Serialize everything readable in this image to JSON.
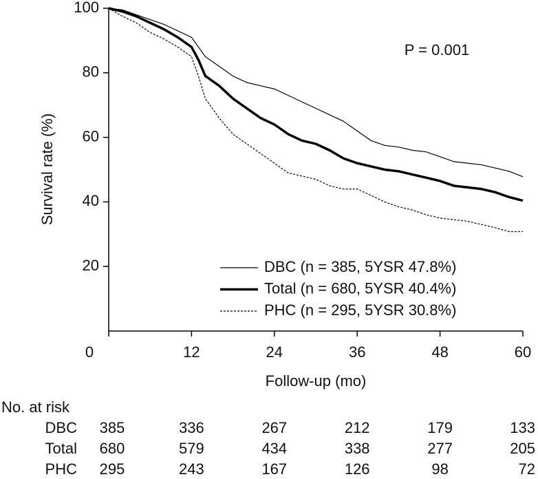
{
  "chart_data": {
    "type": "line",
    "x_label": "Follow-up (mo)",
    "y_label": "Survival rate (%)",
    "annotation": "P = 0.001",
    "xlim": [
      0,
      60
    ],
    "xticks": [
      0,
      12,
      24,
      36,
      48,
      60
    ],
    "ylim": [
      0,
      100
    ],
    "yticks": [
      20,
      40,
      60,
      80,
      100
    ],
    "legend": "lower right",
    "x": [
      0,
      2,
      4,
      6,
      8,
      10,
      12,
      13,
      14,
      16,
      18,
      20,
      22,
      24,
      26,
      28,
      30,
      32,
      34,
      36,
      38,
      40,
      42,
      44,
      46,
      48,
      50,
      52,
      54,
      56,
      58,
      60
    ],
    "series": [
      {
        "name": "DBC (n = 385, 5YSR 47.8%)",
        "color": "#000000",
        "line_width": 1.2,
        "dashed": false,
        "values": [
          100,
          99.5,
          98,
          96.5,
          95,
          93,
          91,
          88,
          85,
          82,
          79,
          77,
          76,
          75,
          73,
          71,
          69,
          67,
          65,
          62,
          59,
          57.5,
          57,
          56,
          55.5,
          54,
          52.5,
          52,
          51.5,
          50.5,
          49.5,
          47.8
        ]
      },
      {
        "name": "Total (n = 680, 5YSR 40.4%)",
        "color": "#000000",
        "line_width": 3.5,
        "dashed": false,
        "values": [
          100,
          99,
          97.5,
          95.5,
          93.5,
          91,
          88,
          84,
          79,
          76,
          72,
          69,
          66,
          64,
          61,
          59,
          58,
          56,
          53.5,
          52,
          51,
          50,
          49.5,
          48.5,
          47.5,
          46.5,
          45,
          44.5,
          44,
          43,
          41.5,
          40.4
        ]
      },
      {
        "name": "PHC (n = 295, 5YSR 30.8%)",
        "color": "#000000",
        "line_width": 1.2,
        "dashed": true,
        "values": [
          100,
          97.5,
          95.5,
          92.5,
          90.5,
          88,
          85,
          79,
          72,
          66,
          61,
          58,
          55,
          52,
          49,
          48,
          47,
          45,
          44,
          44,
          42,
          40,
          38.5,
          37.5,
          36,
          35,
          34.5,
          34,
          33,
          32,
          30.8,
          30.8
        ]
      }
    ]
  },
  "risk_table": {
    "title": "No. at risk",
    "rows": [
      {
        "name": "DBC",
        "values": [
          385,
          336,
          267,
          212,
          179,
          133
        ]
      },
      {
        "name": "Total",
        "values": [
          680,
          579,
          434,
          338,
          277,
          205
        ]
      },
      {
        "name": "PHC",
        "values": [
          295,
          243,
          167,
          126,
          98,
          72
        ]
      }
    ]
  }
}
